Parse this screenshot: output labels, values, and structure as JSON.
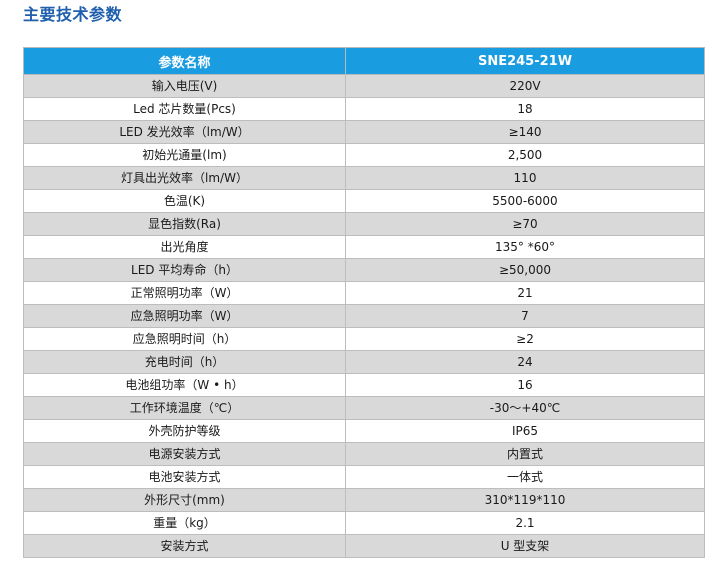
{
  "title": "主要技术参数",
  "table": {
    "header": {
      "param": "参数名称",
      "model": "SNE245-21W"
    },
    "rows": [
      {
        "param": "输入电压(V)",
        "value": "220V"
      },
      {
        "param": "Led 芯片数量(Pcs)",
        "value": "18"
      },
      {
        "param": "LED 发光效率（lm/W）",
        "value": "≥140"
      },
      {
        "param": "初始光通量(lm)",
        "value": "2,500"
      },
      {
        "param": "灯具出光效率（lm/W）",
        "value": "110"
      },
      {
        "param": "色温(K)",
        "value": "5500-6000"
      },
      {
        "param": "显色指数(Ra)",
        "value": "≥70"
      },
      {
        "param": "出光角度",
        "value": "135° *60°"
      },
      {
        "param": "LED 平均寿命（h）",
        "value": "≥50,000"
      },
      {
        "param": "正常照明功率（W）",
        "value": "21"
      },
      {
        "param": "应急照明功率（W）",
        "value": "7"
      },
      {
        "param": "应急照明时间（h）",
        "value": "≥2"
      },
      {
        "param": "充电时间（h）",
        "value": "24"
      },
      {
        "param": "电池组功率（W • h）",
        "value": "16"
      },
      {
        "param": "工作环境温度（℃）",
        "value": "-30～+40℃"
      },
      {
        "param": "外壳防护等级",
        "value": "IP65"
      },
      {
        "param": "电源安装方式",
        "value": "内置式"
      },
      {
        "param": "电池安装方式",
        "value": "一体式"
      },
      {
        "param": "外形尺寸(mm)",
        "value": "310*119*110"
      },
      {
        "param": "重量（kg）",
        "value": "2.1"
      },
      {
        "param": "安装方式",
        "value": "U 型支架"
      }
    ]
  },
  "colors": {
    "title": "#1f5fae",
    "header_bg": "#1a9ce0",
    "row_alt_bg": "#d9d9d9",
    "border": "#bdbdbd"
  }
}
